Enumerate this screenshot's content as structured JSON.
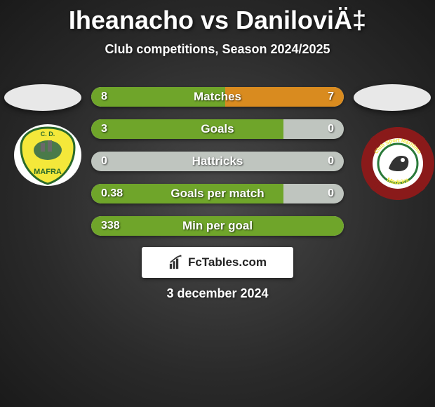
{
  "title": "Iheanacho vs DaniloviÄ‡",
  "subtitle": "Club competitions, Season 2024/2025",
  "date": "3 december 2024",
  "branding": {
    "text": "FcTables.com"
  },
  "colors": {
    "left_bar": "#6fa52a",
    "right_bar": "#d98b1f",
    "track": "#bfc5bf"
  },
  "left_club": {
    "name": "CD Mafra",
    "shield_fill": "#f4e83a",
    "oval_fill": "#e8e8e8"
  },
  "right_club": {
    "name": "CS Marítimo",
    "ring_fill": "#8a1a1a",
    "inner_fill": "#ffffff",
    "accent": "#2a7a3a",
    "oval_fill": "#e8e8e8"
  },
  "stats": [
    {
      "label": "Matches",
      "left_val": "8",
      "right_val": "7",
      "left_pct": 53,
      "right_pct": 47
    },
    {
      "label": "Goals",
      "left_val": "3",
      "right_val": "0",
      "left_pct": 76,
      "right_pct": 0
    },
    {
      "label": "Hattricks",
      "left_val": "0",
      "right_val": "0",
      "left_pct": 0,
      "right_pct": 0
    },
    {
      "label": "Goals per match",
      "left_val": "0.38",
      "right_val": "0",
      "left_pct": 76,
      "right_pct": 0
    },
    {
      "label": "Min per goal",
      "left_val": "338",
      "right_val": "",
      "left_pct": 100,
      "right_pct": 0
    }
  ]
}
